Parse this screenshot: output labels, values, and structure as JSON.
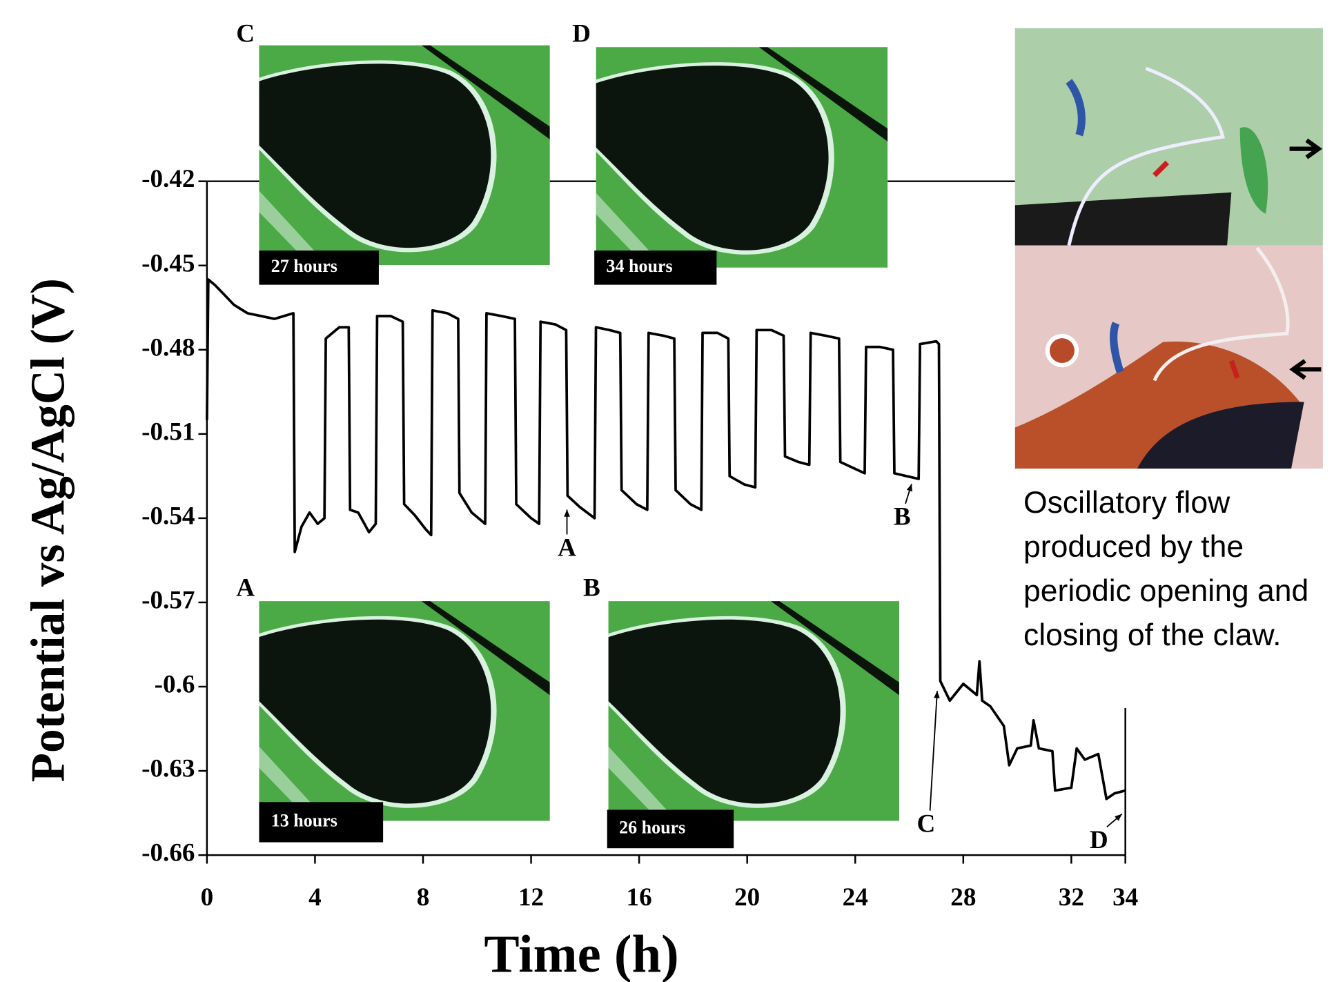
{
  "chart_data": {
    "type": "line",
    "x_label": "Time (h)",
    "y_label": "Potential  vs Ag/AgCl (V)",
    "x": [
      0,
      0.05,
      0.3,
      0.6,
      1,
      1.5,
      2,
      2.5,
      3.2,
      3.25,
      3.5,
      3.8,
      4.1,
      4.35,
      4.4,
      4.9,
      5.25,
      5.3,
      5.6,
      6.0,
      6.25,
      6.3,
      6.8,
      7.25,
      7.3,
      7.7,
      8.1,
      8.3,
      8.35,
      8.9,
      9.3,
      9.35,
      9.8,
      10.3,
      10.35,
      10.9,
      11.4,
      11.45,
      12.0,
      12.3,
      12.35,
      12.9,
      13.3,
      13.35,
      13.8,
      14.35,
      14.4,
      14.9,
      15.3,
      15.35,
      15.9,
      16.3,
      16.35,
      16.9,
      17.3,
      17.35,
      17.9,
      18.3,
      18.35,
      18.9,
      19.3,
      19.35,
      19.9,
      20.3,
      20.35,
      20.9,
      21.35,
      21.4,
      21.9,
      22.3,
      22.35,
      22.9,
      23.4,
      23.45,
      23.9,
      24.35,
      24.4,
      24.9,
      25.4,
      25.45,
      25.9,
      26.35,
      26.4,
      27.0,
      27.1,
      27.15,
      27.5,
      28.0,
      28.5,
      28.6,
      28.7,
      29.0,
      29.5,
      29.7,
      30.0,
      30.5,
      30.6,
      30.8,
      31.3,
      31.4,
      32.0,
      32.2,
      32.5,
      33.0,
      33.3,
      33.6,
      34.0
    ],
    "series": [
      {
        "color": "#000000",
        "values": [
          -0.505,
          -0.455,
          -0.457,
          -0.46,
          -0.464,
          -0.467,
          -0.468,
          -0.469,
          -0.467,
          -0.552,
          -0.543,
          -0.538,
          -0.542,
          -0.54,
          -0.476,
          -0.472,
          -0.472,
          -0.537,
          -0.538,
          -0.545,
          -0.542,
          -0.468,
          -0.468,
          -0.47,
          -0.535,
          -0.539,
          -0.544,
          -0.546,
          -0.466,
          -0.467,
          -0.469,
          -0.531,
          -0.538,
          -0.542,
          -0.467,
          -0.468,
          -0.469,
          -0.535,
          -0.54,
          -0.542,
          -0.47,
          -0.471,
          -0.473,
          -0.532,
          -0.536,
          -0.54,
          -0.472,
          -0.473,
          -0.474,
          -0.53,
          -0.535,
          -0.537,
          -0.474,
          -0.475,
          -0.476,
          -0.53,
          -0.535,
          -0.537,
          -0.474,
          -0.474,
          -0.476,
          -0.525,
          -0.528,
          -0.529,
          -0.473,
          -0.473,
          -0.475,
          -0.518,
          -0.52,
          -0.521,
          -0.474,
          -0.475,
          -0.476,
          -0.52,
          -0.522,
          -0.524,
          -0.479,
          -0.479,
          -0.48,
          -0.524,
          -0.525,
          -0.526,
          -0.478,
          -0.477,
          -0.478,
          -0.598,
          -0.605,
          -0.599,
          -0.603,
          -0.591,
          -0.605,
          -0.607,
          -0.614,
          -0.628,
          -0.622,
          -0.621,
          -0.612,
          -0.622,
          -0.623,
          -0.637,
          -0.636,
          -0.622,
          -0.626,
          -0.624,
          -0.64,
          -0.638,
          -0.637
        ]
      }
    ],
    "xlim": [
      0,
      34
    ],
    "ylim": [
      -0.66,
      -0.42
    ],
    "xticks": [
      0,
      4,
      8,
      12,
      16,
      20,
      24,
      28,
      32,
      34
    ],
    "yticks": [
      -0.42,
      -0.45,
      -0.48,
      -0.51,
      -0.54,
      -0.57,
      -0.6,
      -0.63,
      -0.66
    ],
    "annotations": [
      "A",
      "B",
      "C",
      "D"
    ]
  },
  "insets": [
    {
      "letter": "C",
      "caption": "27 hours"
    },
    {
      "letter": "D",
      "caption": "34 hours"
    },
    {
      "letter": "A",
      "caption": "13 hours"
    },
    {
      "letter": "B",
      "caption": "26 hours"
    }
  ],
  "side_note": "Oscillatory flow produced by the periodic opening and closing of the claw."
}
